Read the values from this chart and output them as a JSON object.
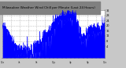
{
  "title": "Milwaukee Weather Wind Chill per Minute (Last 24 Hours)",
  "bg_color": "#c8c8c8",
  "plot_bg_color": "#ffffff",
  "line_color": "#0000ff",
  "fill_color": "#0000ff",
  "grid_color": "#a0a0a0",
  "title_bg": "#808080",
  "title_text_color": "#000000",
  "ylim": [
    -5,
    32
  ],
  "ytick_values": [
    4,
    8,
    12,
    16,
    20,
    24,
    28,
    32
  ],
  "num_points": 1440
}
